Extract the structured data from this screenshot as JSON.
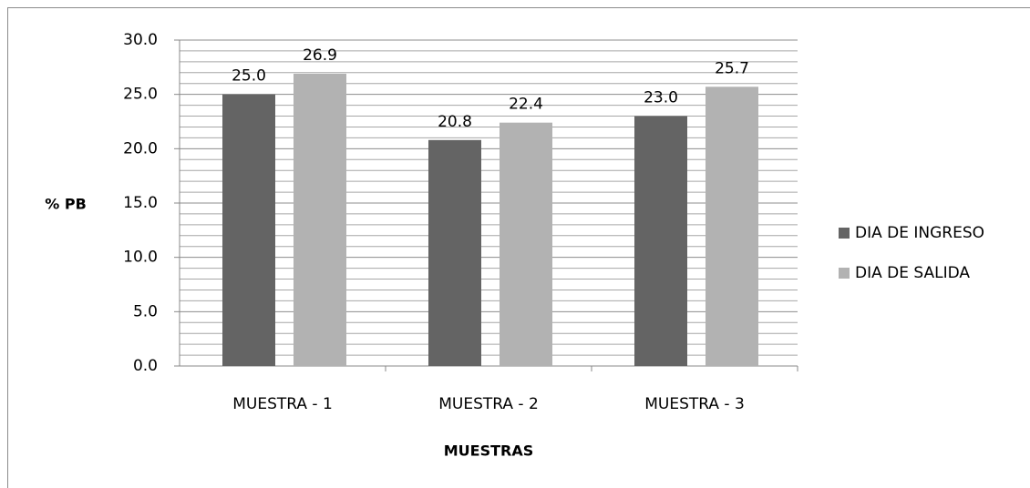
{
  "chart_data": {
    "type": "bar",
    "x_label": "MUESTRAS",
    "y_label": "% PB",
    "categories": [
      "MUESTRA - 1",
      "MUESTRA - 2",
      "MUESTRA - 3"
    ],
    "series": [
      {
        "name": "DIA DE INGRESO",
        "color": "#646464",
        "values": [
          25.0,
          20.8,
          23.0
        ],
        "value_labels": [
          "25.0",
          "20.8",
          "23.0"
        ]
      },
      {
        "name": "DIA DE SALIDA",
        "color": "#b2b2b2",
        "values": [
          26.9,
          22.4,
          25.7
        ],
        "value_labels": [
          "26.9",
          "22.4",
          "25.7"
        ]
      }
    ],
    "ylim": [
      0,
      30
    ],
    "yticks": [
      {
        "value": 0,
        "label": "0.0"
      },
      {
        "value": 5,
        "label": "5.0"
      },
      {
        "value": 10,
        "label": "10.0"
      },
      {
        "value": 15,
        "label": "15.0"
      },
      {
        "value": 20,
        "label": "20.0"
      },
      {
        "value": 25,
        "label": "25.0"
      },
      {
        "value": 30,
        "label": "30.0"
      }
    ],
    "grid": true,
    "minor_grid": true,
    "legend": "right"
  }
}
